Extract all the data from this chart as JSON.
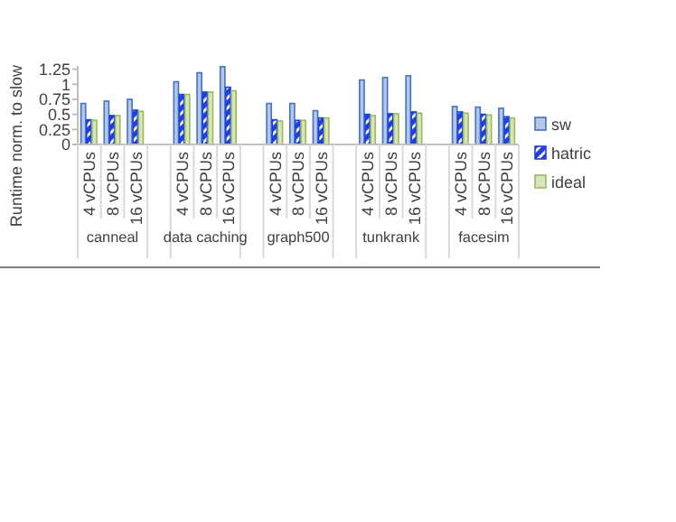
{
  "chart_data": {
    "type": "bar",
    "ylabel": "Runtime norm. to slow",
    "categories": [
      "4 vCPUs",
      "8 vCPUs",
      "16 vCPUs",
      null,
      "4 vCPUs",
      "8 vCPUs",
      "16 vCPUs",
      null,
      "4 vCPUs",
      "8 vCPUs",
      "16 vCPUs",
      null,
      "4 vCPUs",
      "8 vCPUs",
      "16 vCPUs",
      null,
      "4 vCPUs",
      "8 vCPUs",
      "16 vCPUs"
    ],
    "series": [
      {
        "name": "sw",
        "color": "#b4c7e7",
        "values": [
          0.68,
          0.72,
          0.75,
          null,
          1.04,
          1.19,
          1.29,
          null,
          0.68,
          0.68,
          0.56,
          null,
          1.07,
          1.11,
          1.14,
          null,
          0.63,
          0.62,
          0.6
        ]
      },
      {
        "name": "hatric",
        "color": "#1f3fe0",
        "values": [
          0.41,
          0.48,
          0.57,
          null,
          0.83,
          0.87,
          0.95,
          null,
          0.41,
          0.4,
          0.44,
          null,
          0.5,
          0.51,
          0.54,
          null,
          0.54,
          0.5,
          0.46
        ]
      },
      {
        "name": "ideal",
        "color": "#d7e4bd",
        "values": [
          0.4,
          0.48,
          0.55,
          null,
          0.83,
          0.87,
          0.89,
          null,
          0.39,
          0.4,
          0.44,
          null,
          0.48,
          0.51,
          0.52,
          null,
          0.52,
          0.49,
          0.44
        ]
      }
    ],
    "annotations": [
      "canneal",
      "data caching",
      "graph500",
      "tunkrank",
      "facesim"
    ],
    "ylim": [
      0,
      1.3
    ],
    "yticks": [
      0,
      0.25,
      0.5,
      0.75,
      1,
      1.25
    ],
    "grid": false,
    "legend": "right"
  }
}
